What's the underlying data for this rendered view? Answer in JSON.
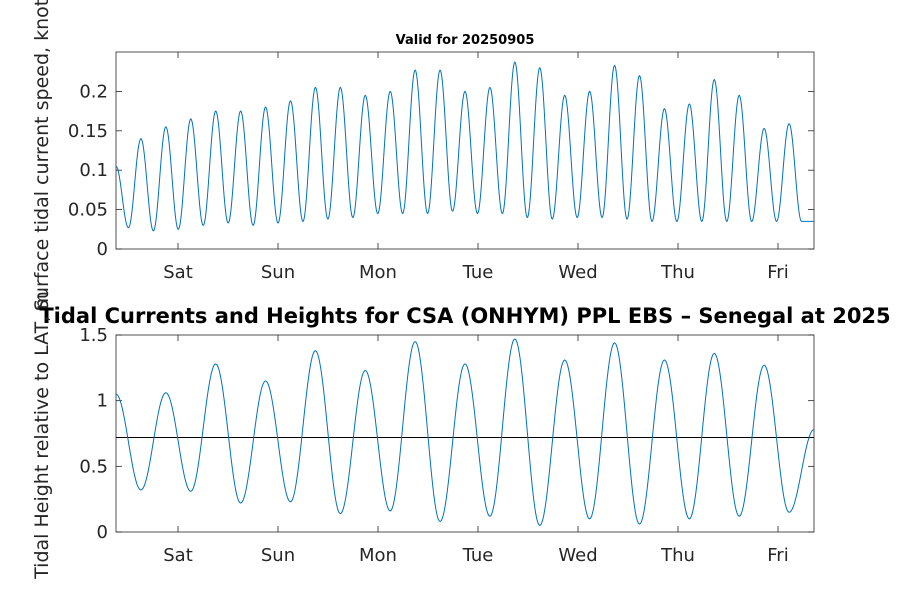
{
  "chart_data": [
    {
      "type": "line",
      "title": "Valid for 20250905",
      "ylabel": "Surface tidal current speed, knots",
      "xlabel": "",
      "x_ticks": [
        "Sat",
        "Sun",
        "Mon",
        "Tue",
        "Wed",
        "Thu",
        "Fri"
      ],
      "xlim_days": [
        0,
        7
      ],
      "ylim": [
        0,
        0.25
      ],
      "y_ticks": [
        "0",
        "0.05",
        "0.1",
        "0.15",
        "0.2"
      ],
      "grid": false,
      "line_color": "#0072bd",
      "series": [
        {
          "peaks": [
            0.14,
            0.155,
            0.165,
            0.175,
            0.175,
            0.18,
            0.188,
            0.205,
            0.205,
            0.195,
            0.2,
            0.227,
            0.227,
            0.2,
            0.205,
            0.237,
            0.23,
            0.195,
            0.2,
            0.233,
            0.22,
            0.178,
            0.184,
            0.215,
            0.195,
            0.153,
            0.159
          ],
          "troughs": [
            0.027,
            0.023,
            0.025,
            0.03,
            0.033,
            0.03,
            0.033,
            0.035,
            0.038,
            0.04,
            0.045,
            0.045,
            0.045,
            0.048,
            0.045,
            0.045,
            0.04,
            0.038,
            0.04,
            0.04,
            0.038,
            0.035
          ],
          "start_value": 0.105,
          "end_value": 0.035
        }
      ]
    },
    {
      "type": "line",
      "title": "Tidal Currents and Heights for CSA (ONHYM) PPL EBS  – Senegal at 2025",
      "ylabel": "Tidal Height relative to LAT, m",
      "xlabel": "",
      "x_ticks": [
        "Sat",
        "Sun",
        "Mon",
        "Tue",
        "Wed",
        "Thu",
        "Fri"
      ],
      "xlim_days": [
        0,
        7
      ],
      "ylim": [
        0,
        1.5
      ],
      "y_ticks": [
        "0",
        "0.5",
        "1",
        "1.5"
      ],
      "grid": false,
      "reference_line": 0.72,
      "line_color": "#0072bd",
      "series": [
        {
          "highs": [
            1.06,
            1.28,
            1.15,
            1.38,
            1.23,
            1.45,
            1.28,
            1.47,
            1.31,
            1.44,
            1.31,
            1.36,
            1.27
          ],
          "lows": [
            0.32,
            0.31,
            0.22,
            0.23,
            0.14,
            0.16,
            0.08,
            0.12,
            0.05,
            0.1,
            0.06,
            0.1,
            0.12,
            0.15
          ],
          "start_value": 1.05,
          "end_value": 0.78
        }
      ]
    }
  ]
}
